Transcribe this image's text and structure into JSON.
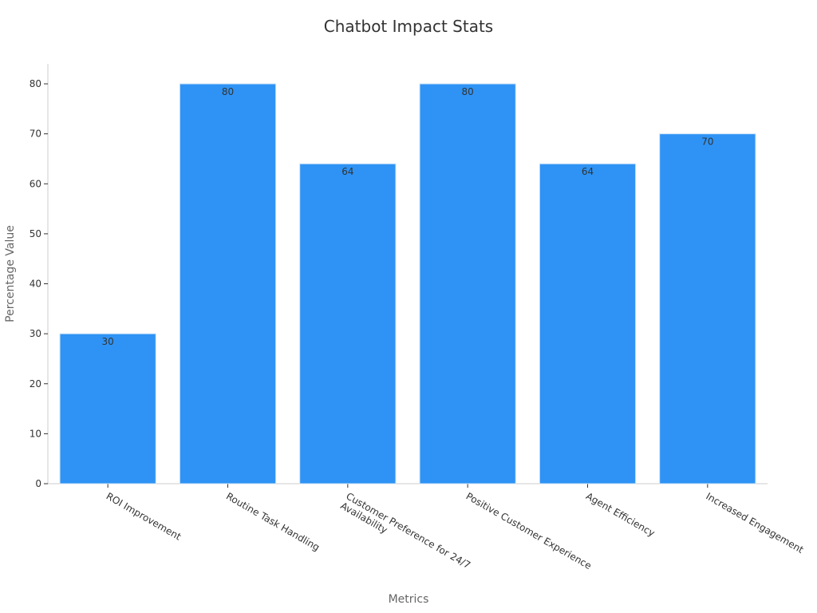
{
  "chart_data": {
    "type": "bar",
    "title": "Chatbot Impact Stats",
    "x_label": "Metrics",
    "y_label": "Percentage Value",
    "categories": [
      "ROI Improvement",
      "Routine Task Handling",
      "Customer Preference for 24/7 Availability",
      "Positive Customer Experience",
      "Agent Efficiency",
      "Increased Engagement"
    ],
    "values": [
      30,
      80,
      64,
      80,
      64,
      70
    ],
    "color": "#2e93f5",
    "ylim": [
      0,
      84
    ],
    "yticks": [
      0,
      10,
      20,
      30,
      40,
      50,
      60,
      70,
      80
    ],
    "grid": false
  }
}
